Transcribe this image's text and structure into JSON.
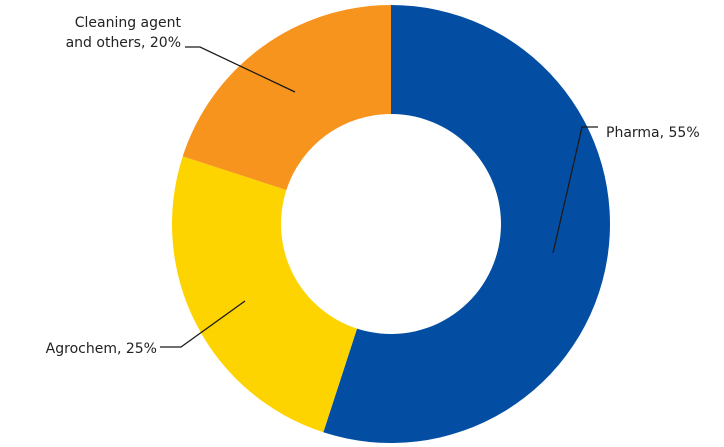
{
  "chart_data": {
    "type": "pie",
    "donut": true,
    "title": "",
    "slices": [
      {
        "name": "Pharma",
        "value": 55,
        "color": "#034EA2",
        "label_lines": [
          "Pharma, 55%"
        ]
      },
      {
        "name": "Agrochem",
        "value": 25,
        "color": "#FDD300",
        "label_lines": [
          "Agrochem, 25%"
        ]
      },
      {
        "name": "Cleaning agent and others",
        "value": 20,
        "color": "#F7941D",
        "label_lines": [
          "Cleaning agent",
          "and others, 20%"
        ]
      }
    ],
    "legend": "none",
    "background": "#FFFFFF"
  }
}
